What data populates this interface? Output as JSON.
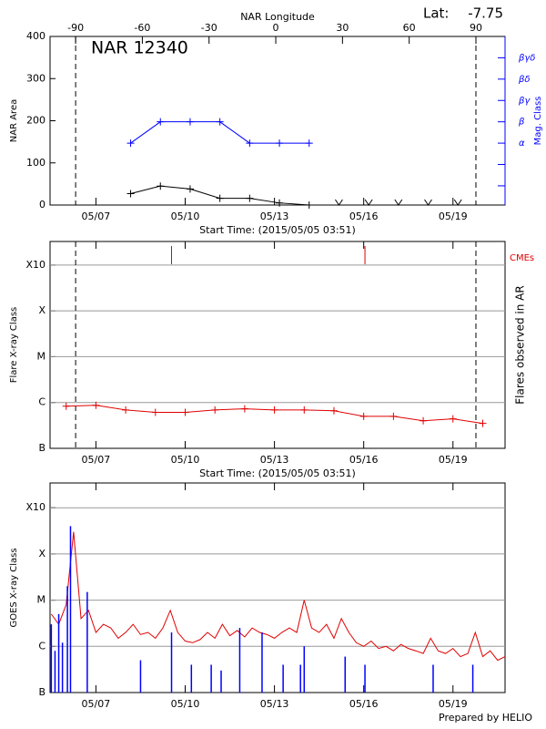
{
  "chart_data": [
    {
      "type": "line",
      "title": "NAR 12340",
      "lat_label": "Lat:",
      "lat": -7.75,
      "x_label": "Start Time: (2015/05/05 03:51)",
      "x2_label": "NAR Longitude",
      "xlim": [
        "2015-05-05T11:00",
        "2015-05-20T18:00"
      ],
      "xticks": [
        {
          "value": "2015-05-07T00:00",
          "label": "05/07"
        },
        {
          "value": "2015-05-10T00:00",
          "label": "05/10"
        },
        {
          "value": "2015-05-13T00:00",
          "label": "05/13"
        },
        {
          "value": "2015-05-16T00:00",
          "label": "05/16"
        },
        {
          "value": "2015-05-19T00:00",
          "label": "05/19"
        }
      ],
      "x2lim": [
        -101.5,
        103.1
      ],
      "x2ticks": [
        -90,
        -60,
        -30,
        0,
        30,
        60,
        90
      ],
      "y_label": "NAR Area",
      "ylim": [
        0,
        400
      ],
      "yticks": [
        0,
        100,
        200,
        300,
        400
      ],
      "y2_label": "Mag. Class",
      "y2_color": "#0000ff",
      "y2categories": [
        null,
        null,
        "α",
        "β",
        "βγ",
        "βδ",
        "βγδ"
      ],
      "series": [
        {
          "color": "#000000",
          "marker": "+",
          "x": [
            "2015-05-08T04:00",
            "2015-05-09T04:00",
            "2015-05-10T04:00",
            "2015-05-11T04:00",
            "2015-05-12T04:00",
            "2015-05-13T04:00",
            "2015-05-14T04:00"
          ],
          "values": [
            27,
            45,
            38,
            16,
            16,
            5,
            0
          ]
        },
        {
          "color": "#000000",
          "marker": "v",
          "nolines": true,
          "x": [
            "2015-05-15T04:00",
            "2015-05-16T04:00",
            "2015-05-17T04:00",
            "2015-05-18T04:00",
            "2015-05-19T04:00"
          ],
          "values": [
            0,
            0,
            0,
            0,
            0
          ]
        },
        {
          "color": "#0000ff",
          "marker": "+",
          "axis": "y2",
          "x": [
            "2015-05-08T04:00",
            "2015-05-09T04:00",
            "2015-05-10T04:00",
            "2015-05-11T04:00",
            "2015-05-12T04:00",
            "2015-05-13T04:00",
            "2015-05-14T04:00"
          ],
          "values": [
            "α",
            "β",
            "β",
            "β",
            "α",
            "α",
            "α"
          ]
        }
      ]
    },
    {
      "type": "line",
      "x_label": "Start Time: (2015/05/05 03:51)",
      "limb_lines": true,
      "xlim": [
        "2015-05-05T11:00",
        "2015-05-20T18:00"
      ],
      "xticks": [
        {
          "value": "2015-05-07T00:00",
          "label": "05/07"
        },
        {
          "value": "2015-05-10T00:00",
          "label": "05/10"
        },
        {
          "value": "2015-05-13T00:00",
          "label": "05/13"
        },
        {
          "value": "2015-05-16T00:00",
          "label": "05/16"
        },
        {
          "value": "2015-05-19T00:00",
          "label": "05/19"
        }
      ],
      "y_label": "Flare X-ray Class",
      "log_scale": true,
      "grid": true,
      "ylim": [
        1e-07,
        0.00327
      ],
      "yticks": [
        {
          "value": 1e-07,
          "label": "B"
        },
        {
          "value": 1e-06,
          "label": "C"
        },
        {
          "value": 1e-05,
          "label": "M"
        },
        {
          "value": 0.0001,
          "label": "X"
        },
        {
          "value": 0.001,
          "label": "X10"
        }
      ],
      "y2_label": "Flares observed in AR",
      "events": {
        "name": "CMEs",
        "color": "#e00000",
        "x": [
          "2015-05-09T13:00",
          "2015-05-16T01:00"
        ]
      },
      "series": [
        {
          "color": "#e00000",
          "marker": "+",
          "x": [
            "2015-05-06T00:00",
            "2015-05-07T00:00",
            "2015-05-08T00:00",
            "2015-05-09T00:00",
            "2015-05-10T00:00",
            "2015-05-11T00:00",
            "2015-05-12T00:00",
            "2015-05-13T00:00",
            "2015-05-14T00:00",
            "2015-05-15T00:00",
            "2015-05-16T00:00",
            "2015-05-17T00:00",
            "2015-05-18T00:00",
            "2015-05-19T00:00",
            "2015-05-20T00:00"
          ],
          "values": [
            8.3e-07,
            8.7e-07,
            6.9e-07,
            6.1e-07,
            6.1e-07,
            6.9e-07,
            7.3e-07,
            6.9e-07,
            6.9e-07,
            6.6e-07,
            5e-07,
            5e-07,
            4e-07,
            4.4e-07,
            3.5e-07
          ]
        }
      ]
    },
    {
      "type": "line",
      "footer": "Prepared by HELIO",
      "xlim": [
        "2015-05-05T11:00",
        "2015-05-20T18:00"
      ],
      "xticks": [
        {
          "value": "2015-05-07T00:00",
          "label": "05/07"
        },
        {
          "value": "2015-05-10T00:00",
          "label": "05/10"
        },
        {
          "value": "2015-05-13T00:00",
          "label": "05/13"
        },
        {
          "value": "2015-05-16T00:00",
          "label": "05/16"
        },
        {
          "value": "2015-05-19T00:00",
          "label": "05/19"
        }
      ],
      "y_label": "GOES X-ray Class",
      "log_scale": true,
      "grid": true,
      "ylim": [
        1e-07,
        0.00344
      ],
      "yticks": [
        {
          "value": 1e-07,
          "label": "B"
        },
        {
          "value": 1e-06,
          "label": "C"
        },
        {
          "value": 1e-05,
          "label": "M"
        },
        {
          "value": 0.0001,
          "label": "X"
        },
        {
          "value": 0.001,
          "label": "X10"
        }
      ],
      "series": [
        {
          "color": "#e00000",
          "x": [
            "2015-05-05T12:00",
            "2015-05-05T18:00",
            "2015-05-06T00:00",
            "2015-05-06T06:00",
            "2015-05-06T12:00",
            "2015-05-06T18:00",
            "2015-05-07T00:00",
            "2015-05-07T06:00",
            "2015-05-07T12:00",
            "2015-05-07T18:00",
            "2015-05-08T00:00",
            "2015-05-08T06:00",
            "2015-05-08T12:00",
            "2015-05-08T18:00",
            "2015-05-09T00:00",
            "2015-05-09T06:00",
            "2015-05-09T12:00",
            "2015-05-09T18:00",
            "2015-05-10T00:00",
            "2015-05-10T06:00",
            "2015-05-10T12:00",
            "2015-05-10T18:00",
            "2015-05-11T00:00",
            "2015-05-11T06:00",
            "2015-05-11T12:00",
            "2015-05-11T18:00",
            "2015-05-12T00:00",
            "2015-05-12T06:00",
            "2015-05-12T12:00",
            "2015-05-12T18:00",
            "2015-05-13T00:00",
            "2015-05-13T06:00",
            "2015-05-13T12:00",
            "2015-05-13T18:00",
            "2015-05-14T00:00",
            "2015-05-14T06:00",
            "2015-05-14T12:00",
            "2015-05-14T18:00",
            "2015-05-15T00:00",
            "2015-05-15T06:00",
            "2015-05-15T12:00",
            "2015-05-15T18:00",
            "2015-05-16T00:00",
            "2015-05-16T06:00",
            "2015-05-16T12:00",
            "2015-05-16T18:00",
            "2015-05-17T00:00",
            "2015-05-17T06:00",
            "2015-05-17T12:00",
            "2015-05-17T18:00",
            "2015-05-18T00:00",
            "2015-05-18T06:00",
            "2015-05-18T12:00",
            "2015-05-18T18:00",
            "2015-05-19T00:00",
            "2015-05-19T06:00",
            "2015-05-19T12:00",
            "2015-05-19T18:00",
            "2015-05-20T00:00",
            "2015-05-20T06:00",
            "2015-05-20T12:00",
            "2015-05-20T18:00"
          ],
          "values": [
            5e-06,
            3e-06,
            8e-06,
            0.0003,
            4e-06,
            6e-06,
            2e-06,
            3e-06,
            2.5e-06,
            1.5e-06,
            2e-06,
            3e-06,
            1.8e-06,
            2e-06,
            1.5e-06,
            2.5e-06,
            6e-06,
            2e-06,
            1.3e-06,
            1.2e-06,
            1.4e-06,
            2e-06,
            1.5e-06,
            3e-06,
            1.7e-06,
            2.2e-06,
            1.6e-06,
            2.5e-06,
            2e-06,
            1.8e-06,
            1.5e-06,
            2e-06,
            2.5e-06,
            2e-06,
            1e-05,
            2.5e-06,
            2e-06,
            3e-06,
            1.5e-06,
            4e-06,
            2e-06,
            1.2e-06,
            1e-06,
            1.3e-06,
            9e-07,
            1e-06,
            8e-07,
            1.1e-06,
            9e-07,
            8e-07,
            7e-07,
            1.5e-06,
            8e-07,
            7e-07,
            9e-07,
            6e-07,
            7e-07,
            2e-06,
            6e-07,
            8e-07,
            5e-07,
            6e-07
          ]
        },
        {
          "color": "#0000ff",
          "type": "bar",
          "x": [
            "2015-05-05T12:00",
            "2015-05-05T15:00",
            "2015-05-05T18:00",
            "2015-05-05T21:00",
            "2015-05-06T01:00",
            "2015-05-06T03:30",
            "2015-05-06T17:00",
            "2015-05-08T12:00",
            "2015-05-09T13:00",
            "2015-05-10T05:00",
            "2015-05-10T21:00",
            "2015-05-11T05:00",
            "2015-05-11T20:00",
            "2015-05-12T14:00",
            "2015-05-13T07:00",
            "2015-05-13T21:00",
            "2015-05-14T00:00",
            "2015-05-15T09:00",
            "2015-05-16T01:00",
            "2015-05-18T08:00",
            "2015-05-19T16:00"
          ],
          "values": [
            3e-06,
            8e-07,
            5e-06,
            1.2e-06,
            2e-05,
            0.0004,
            1.5e-05,
            5e-07,
            2e-06,
            4e-07,
            4e-07,
            3e-07,
            2.5e-06,
            2e-06,
            4e-07,
            4e-07,
            1e-06,
            6e-07,
            4e-07,
            4e-07,
            4e-07
          ]
        }
      ]
    }
  ]
}
